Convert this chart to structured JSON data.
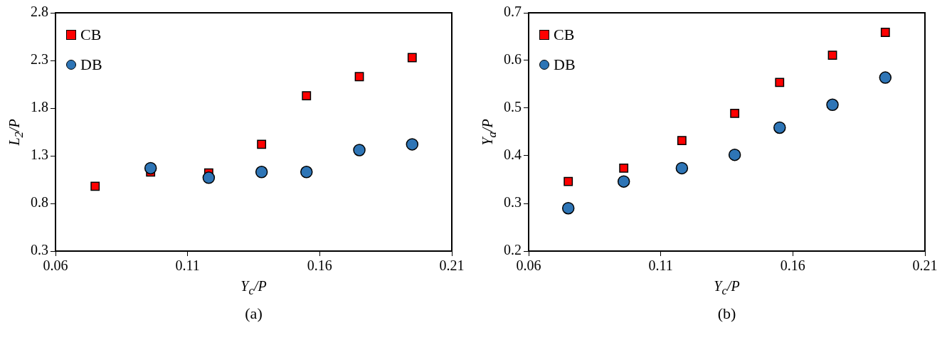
{
  "chart_data": [
    {
      "type": "scatter",
      "xlabel": "Y$_{c}$/P",
      "ylabel": "L$_{2}$/P",
      "annotations": [
        "(a)"
      ],
      "legend": "top left",
      "grid": false,
      "xlim": [
        0.06,
        0.21
      ],
      "xticks": [
        0.06,
        0.11,
        0.16,
        0.21
      ],
      "ylim": [
        0.3,
        2.8
      ],
      "yticks": [
        0.3,
        0.8,
        1.3,
        1.8,
        2.3,
        2.8
      ],
      "x": [
        0.075,
        0.096,
        0.118,
        0.138,
        0.155,
        0.175,
        0.195
      ],
      "series": [
        {
          "name": "CB",
          "color": "#ff0000",
          "marker": "square",
          "values": [
            0.98,
            1.13,
            1.12,
            1.42,
            1.93,
            2.13,
            2.33
          ]
        },
        {
          "name": "DB",
          "color": "#2e75b6",
          "marker": "circle",
          "values": [
            null,
            1.17,
            1.07,
            1.13,
            1.13,
            1.36,
            1.42
          ]
        }
      ]
    },
    {
      "type": "scatter",
      "xlabel": "Y$_{c}$/P",
      "ylabel": "Y$_{a}$/P",
      "annotations": [
        "(b)"
      ],
      "legend": "top left",
      "grid": false,
      "xlim": [
        0.06,
        0.21
      ],
      "xticks": [
        0.06,
        0.11,
        0.16,
        0.21
      ],
      "ylim": [
        0.2,
        0.7
      ],
      "yticks": [
        0.2,
        0.3,
        0.4,
        0.5,
        0.6,
        0.7
      ],
      "x": [
        0.075,
        0.096,
        0.118,
        0.138,
        0.155,
        0.175,
        0.195
      ],
      "series": [
        {
          "name": "CB",
          "color": "#ff0000",
          "marker": "square",
          "values": [
            0.346,
            0.374,
            0.432,
            0.489,
            0.554,
            0.611,
            0.659
          ]
        },
        {
          "name": "DB",
          "color": "#2e75b6",
          "marker": "circle",
          "values": [
            0.29,
            0.346,
            0.374,
            0.402,
            0.459,
            0.507,
            0.564
          ]
        }
      ]
    }
  ]
}
